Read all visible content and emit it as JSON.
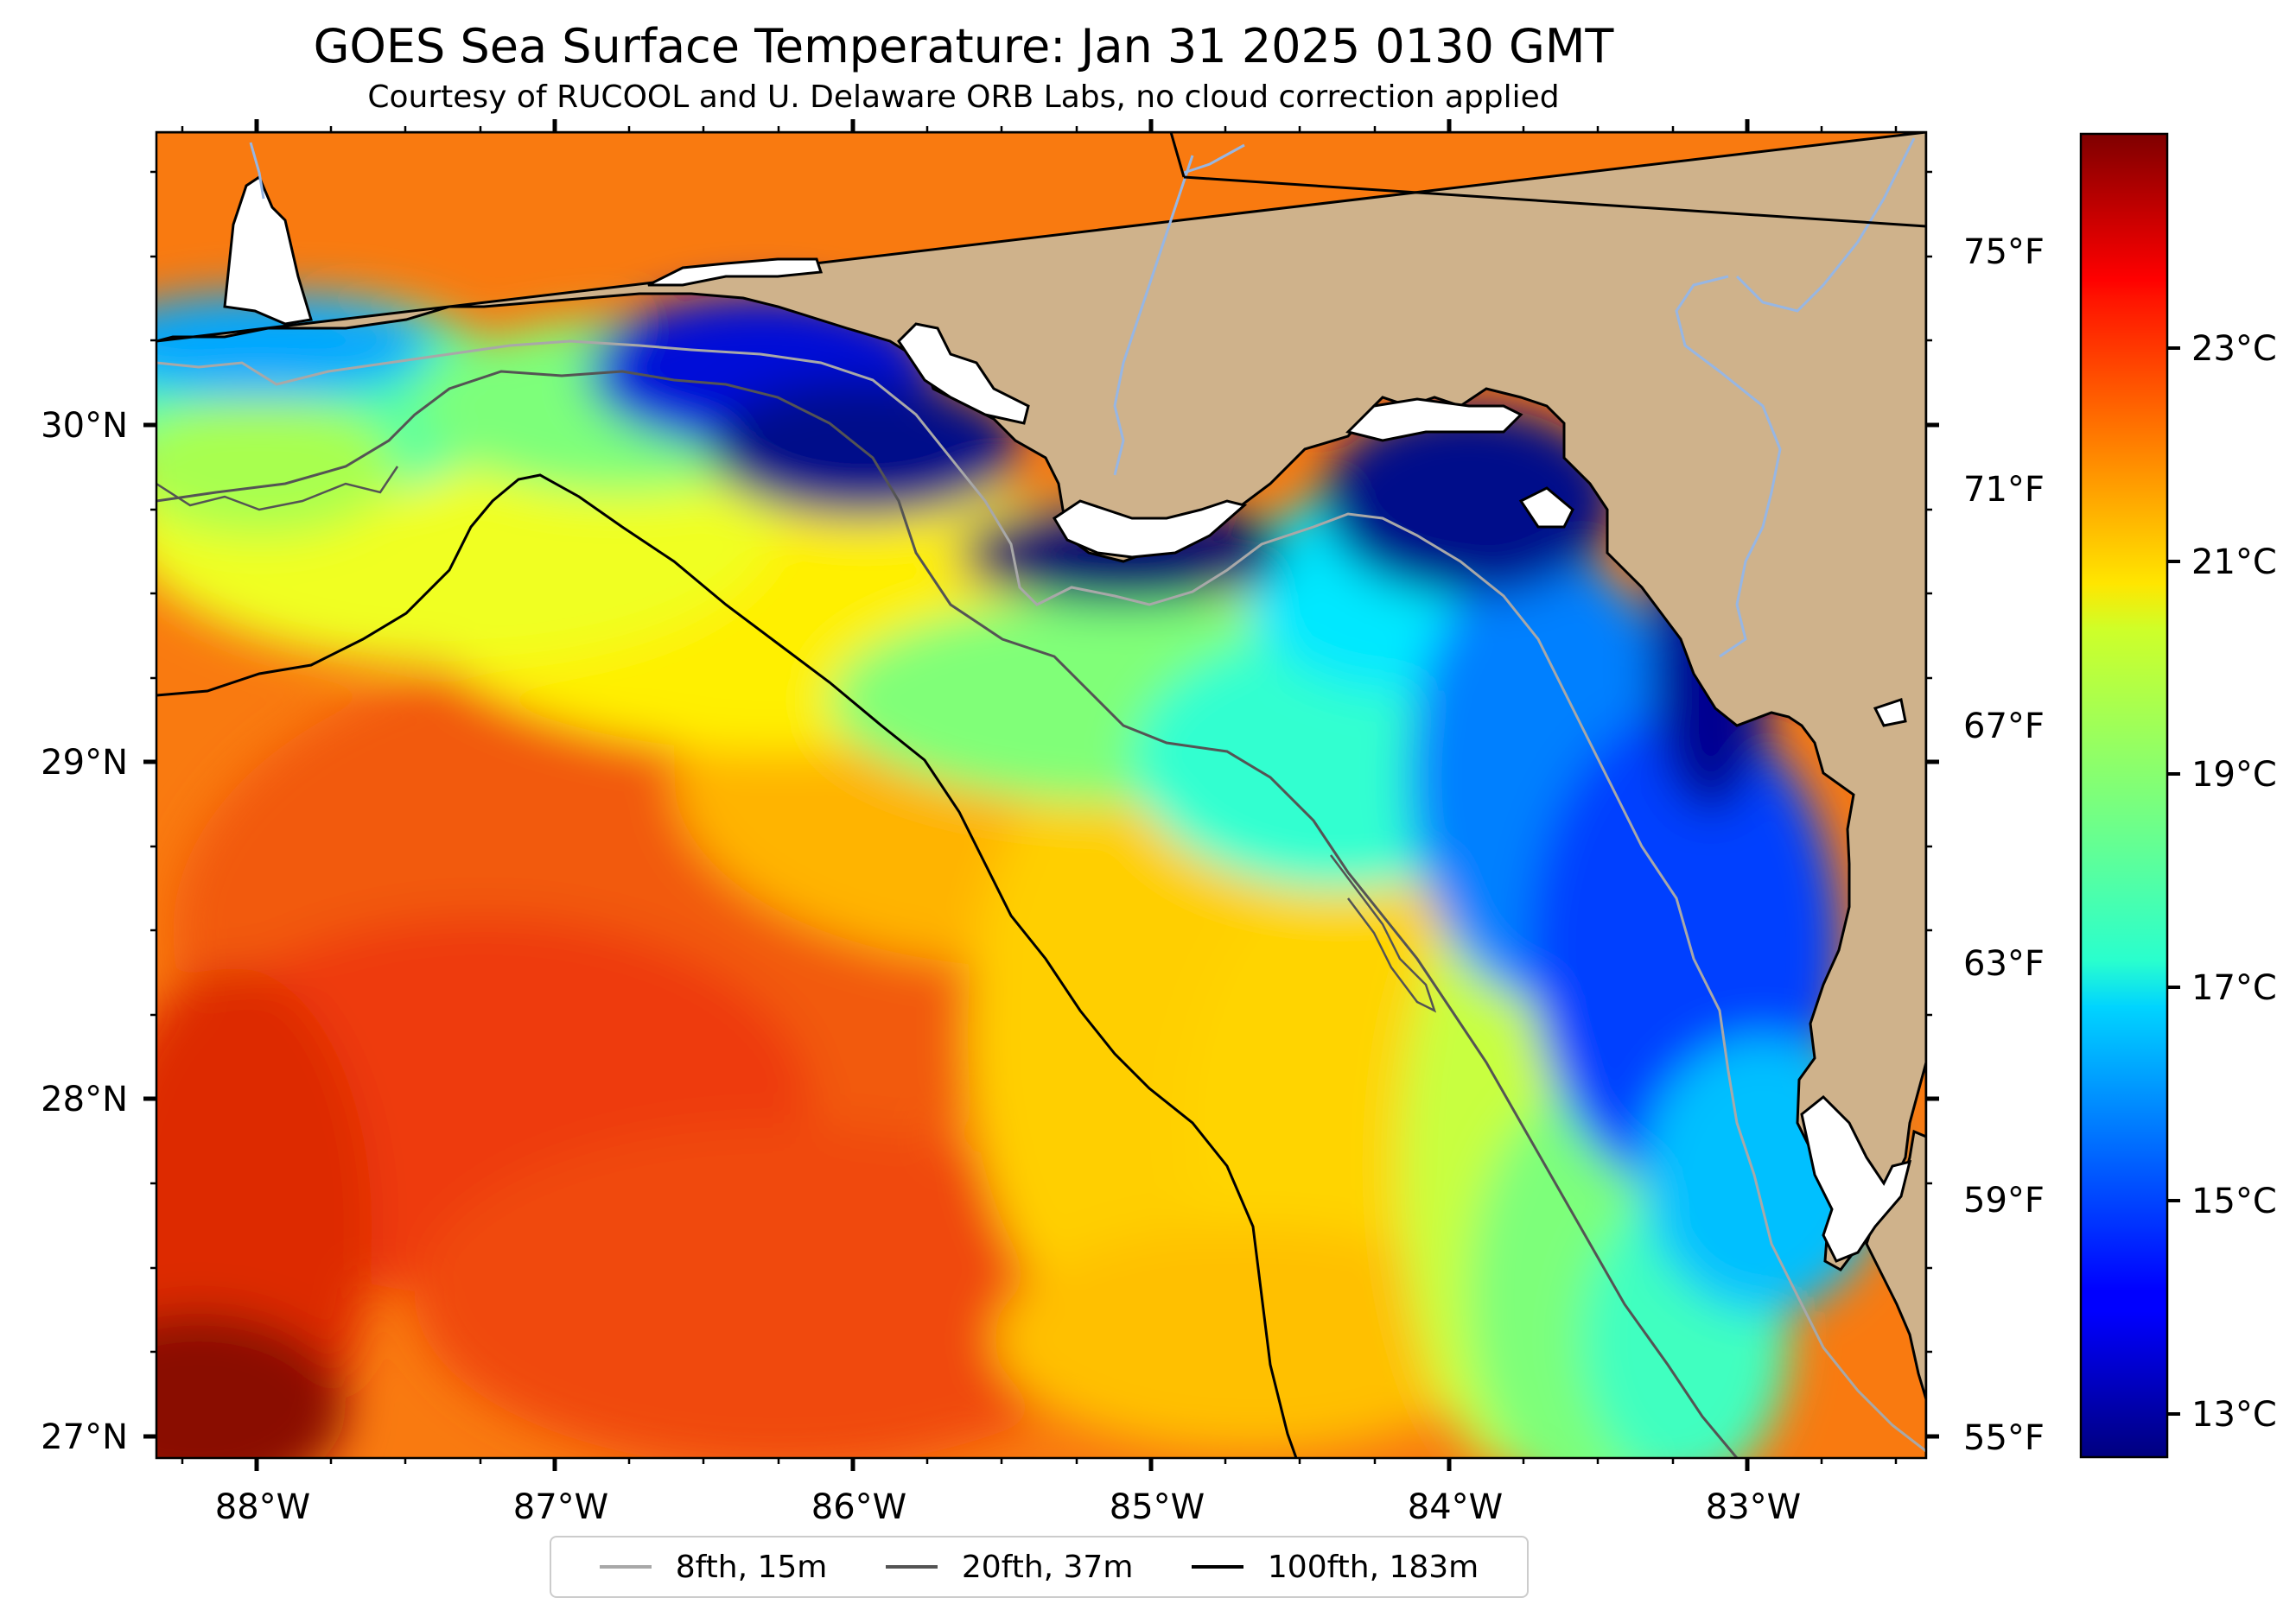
{
  "header": {
    "title": "GOES Sea Surface Temperature: Jan 31 2025 0130 GMT",
    "subtitle": "Courtesy of RUCOOL and U. Delaware ORB Labs, no cloud correction applied"
  },
  "map": {
    "region": "Northeastern Gulf of Mexico (Florida Panhandle / Big Bend)",
    "lon_range": [
      -88.35,
      -82.4
    ],
    "lat_range": [
      26.93,
      30.85
    ],
    "x_ticks": [
      "88°W",
      "87°W",
      "86°W",
      "85°W",
      "84°W",
      "83°W"
    ],
    "y_ticks": [
      "27°N",
      "28°N",
      "29°N",
      "30°N"
    ],
    "colors": {
      "land": "#cfb28b",
      "no_data": "#ffffff",
      "coastline": "#000000",
      "state_border": "#000000",
      "rivers": "#97b6e3"
    }
  },
  "legend": {
    "items": [
      {
        "label": "8fth, 15m",
        "color": "#a8a8a8"
      },
      {
        "label": "20fth, 37m",
        "color": "#545454"
      },
      {
        "label": "100fth, 183m",
        "color": "#000000"
      }
    ]
  },
  "colorbar": {
    "colormap": "jet",
    "range_c": [
      12.3,
      24.8
    ],
    "celsius_ticks": [
      "13°C",
      "15°C",
      "17°C",
      "19°C",
      "21°C",
      "23°C"
    ],
    "fahrenheit_ticks": [
      "55°F",
      "59°F",
      "63°F",
      "67°F",
      "71°F",
      "75°F"
    ]
  }
}
